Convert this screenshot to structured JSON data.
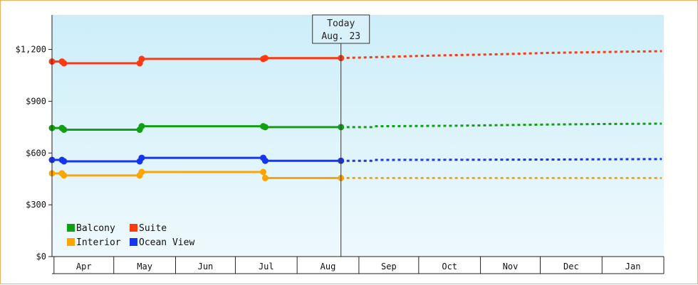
{
  "chart_data": {
    "type": "line",
    "y_ticks": [
      "$0",
      "$300",
      "$600",
      "$900",
      "$1,200"
    ],
    "ylim": [
      0,
      1400
    ],
    "x_ticks": [
      "Apr",
      "May",
      "Jun",
      "Jul",
      "Aug",
      "Sep",
      "Oct",
      "Nov",
      "Dec",
      "Jan"
    ],
    "x_range": [
      "Apr 1",
      "Jan 31"
    ],
    "today_marker": {
      "line1": "Today",
      "line2": "Aug. 23",
      "date": "Aug 23"
    },
    "grid": false,
    "legend": {
      "position": "bottom-left"
    },
    "series": [
      {
        "name": "Balcony",
        "color": "#11a011",
        "actual": [
          [
            "Mar 31",
            745
          ],
          [
            "Apr 5",
            745
          ],
          [
            "Apr 6",
            735
          ],
          [
            "May 14",
            735
          ],
          [
            "May 15",
            755
          ],
          [
            "Jul 15",
            755
          ],
          [
            "Jul 16",
            750
          ],
          [
            "Aug 23",
            750
          ]
        ],
        "forecast": [
          [
            "Aug 23",
            750
          ],
          [
            "Sep 8",
            750
          ],
          [
            "Sep 9",
            755
          ],
          [
            "Oct 20",
            758
          ],
          [
            "Nov 15",
            762
          ],
          [
            "Dec 5",
            765
          ],
          [
            "Jan 1",
            768
          ],
          [
            "Jan 31",
            770
          ]
        ]
      },
      {
        "name": "Suite",
        "color": "#ff3a10",
        "actual": [
          [
            "Mar 31",
            1130
          ],
          [
            "Apr 5",
            1130
          ],
          [
            "Apr 6",
            1120
          ],
          [
            "May 14",
            1120
          ],
          [
            "May 15",
            1145
          ],
          [
            "Jul 15",
            1145
          ],
          [
            "Jul 16",
            1150
          ],
          [
            "Aug 23",
            1150
          ]
        ],
        "forecast": [
          [
            "Aug 23",
            1150
          ],
          [
            "Sep 8",
            1155
          ],
          [
            "Oct 10",
            1165
          ],
          [
            "Nov 10",
            1172
          ],
          [
            "Dec 5",
            1180
          ],
          [
            "Jan 1",
            1185
          ],
          [
            "Jan 31",
            1190
          ]
        ]
      },
      {
        "name": "Interior",
        "color": "#ffa500",
        "actual": [
          [
            "Mar 31",
            482
          ],
          [
            "Apr 5",
            482
          ],
          [
            "Apr 6",
            470
          ],
          [
            "May 14",
            470
          ],
          [
            "May 15",
            490
          ],
          [
            "Jul 15",
            490
          ],
          [
            "Jul 16",
            455
          ],
          [
            "Aug 23",
            455
          ]
        ],
        "forecast": [
          [
            "Aug 23",
            455
          ],
          [
            "Jan 31",
            455
          ]
        ]
      },
      {
        "name": "Ocean View",
        "color": "#1535ee",
        "actual": [
          [
            "Mar 31",
            560
          ],
          [
            "Apr 5",
            560
          ],
          [
            "Apr 6",
            552
          ],
          [
            "May 14",
            552
          ],
          [
            "May 15",
            572
          ],
          [
            "Jul 15",
            572
          ],
          [
            "Jul 16",
            555
          ],
          [
            "Aug 23",
            555
          ]
        ],
        "forecast": [
          [
            "Aug 23",
            555
          ],
          [
            "Sep 8",
            555
          ],
          [
            "Sep 9",
            560
          ],
          [
            "Dec 5",
            562
          ],
          [
            "Jan 31",
            565
          ]
        ]
      }
    ]
  }
}
